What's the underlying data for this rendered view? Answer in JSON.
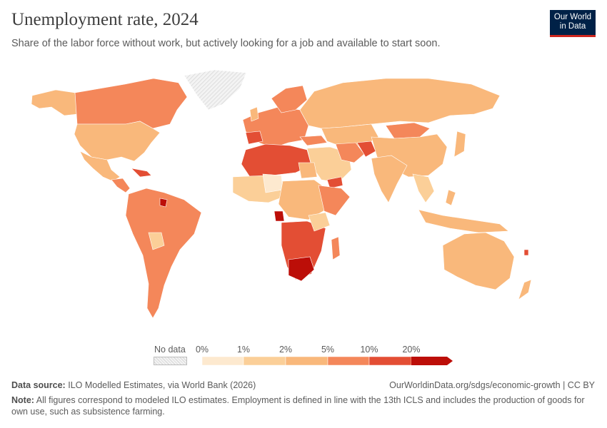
{
  "header": {
    "title": "Unemployment rate, 2024",
    "subtitle": "Share of the labor force without work, but actively looking for a job and available to start soon.",
    "logo_line1": "Our World",
    "logo_line2": "in Data"
  },
  "legend": {
    "no_data_label": "No data",
    "ticks": [
      "0%",
      "1%",
      "2%",
      "5%",
      "10%",
      "20%"
    ],
    "bin_colors": [
      "#fde9cf",
      "#fbcf98",
      "#f9b87b",
      "#f4875a",
      "#e34e34",
      "#bc0e08"
    ],
    "no_data_color": "#e5e5e5"
  },
  "map": {
    "ocean_color": "#ffffff",
    "border_color": "#ffffff"
  },
  "footer": {
    "source_label": "Data source:",
    "source_text": "ILO Modelled Estimates, via World Bank (2026)",
    "url_text": "OurWorldinData.org/sdgs/economic-growth | CC BY",
    "note_label": "Note:",
    "note_text": "All figures correspond to modeled ILO estimates. Employment is defined in line with the 13th ICLS and includes the production of goods for own use, such as subsistence farming."
  }
}
